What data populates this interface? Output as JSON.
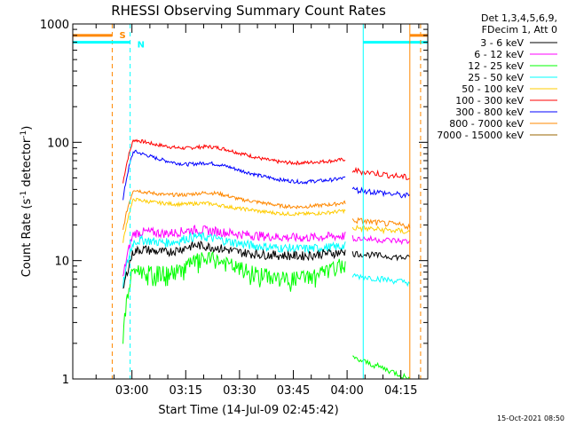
{
  "chart_data": {
    "type": "line",
    "title": "RHESSI Observing Summary Count Rates",
    "xlabel": "Start Time (14-Jul-09 02:45:42)",
    "ylabel_main": "Count Rate (s",
    "ylabel_sup1": "-1",
    "ylabel_mid": " detector",
    "ylabel_sup2": "-1",
    "ylabel_end": ")",
    "y_scale": "log",
    "ylim": [
      1,
      1000
    ],
    "xlim_minutes_after_0245": [
      -1.5,
      97.5
    ],
    "y_ticks": [
      {
        "value": 1,
        "label": "1"
      },
      {
        "value": 10,
        "label": "10"
      },
      {
        "value": 100,
        "label": "100"
      },
      {
        "value": 1000,
        "label": "1000"
      }
    ],
    "x_ticks": [
      {
        "value": 15,
        "label": "03:00"
      },
      {
        "value": 30,
        "label": "03:15"
      },
      {
        "value": 45,
        "label": "03:30"
      },
      {
        "value": 60,
        "label": "03:45"
      },
      {
        "value": 75,
        "label": "04:00"
      },
      {
        "value": 90,
        "label": "04:15"
      }
    ],
    "legend_header": [
      "Det 1,3,4,5,6,9,",
      "FDecim 1, Att 0"
    ],
    "legend_position": "top-right, outside plot",
    "series": [
      {
        "name": "3 - 6 keV",
        "color": "#000000",
        "values": [
          5.5,
          12,
          12.5,
          12,
          11.8,
          12.2,
          13,
          13.5,
          13.2,
          12.8,
          12.3,
          11.8,
          11.5,
          11.3,
          11.2,
          11.1,
          11,
          11,
          11.2,
          11.5,
          11.6,
          11.8
        ]
      },
      {
        "name": "6 - 12 keV",
        "color": "#ff00ff",
        "values": [
          7,
          17,
          17.5,
          17.3,
          17,
          17.3,
          18,
          18.3,
          18,
          17.6,
          17.2,
          16.8,
          16.5,
          16.2,
          16,
          15.8,
          15.7,
          15.6,
          15.8,
          15.9,
          16.1,
          16.2
        ]
      },
      {
        "name": "12 - 25 keV",
        "color": "#00ff00",
        "values": [
          2.2,
          8.5,
          8,
          7.8,
          7.8,
          8,
          9,
          10,
          10.3,
          10,
          9.2,
          8.5,
          8,
          7.6,
          7.3,
          7,
          7,
          7.2,
          7.5,
          8,
          8.5,
          9.5
        ]
      },
      {
        "name": "25 - 50 keV",
        "color": "#00ffff",
        "values": [
          6,
          14.5,
          15,
          14.5,
          14.2,
          14.5,
          15.5,
          16,
          15.7,
          15.2,
          14.5,
          14,
          13.5,
          13.2,
          13,
          12.8,
          12.7,
          12.6,
          12.7,
          12.9,
          13,
          13.3
        ]
      },
      {
        "name": "50 - 100 keV",
        "color": "#ffcc00",
        "values": [
          14,
          33,
          32,
          31,
          30.5,
          30,
          30,
          30.5,
          30.5,
          29.5,
          28.5,
          27.5,
          27,
          26,
          25.5,
          25,
          24.8,
          24.8,
          25,
          25.3,
          25.8,
          26.5
        ]
      },
      {
        "name": "100 - 300 keV",
        "color": "#ff0000",
        "values": [
          45,
          105,
          101,
          96,
          93,
          90,
          89,
          91,
          92,
          90,
          86,
          81,
          77,
          73,
          70,
          68,
          67,
          67,
          68,
          69,
          70,
          72
        ]
      },
      {
        "name": "300 - 800 keV",
        "color": "#0000ff",
        "values": [
          32,
          84,
          79,
          74,
          70,
          67,
          65,
          66,
          67,
          65,
          62,
          58,
          55,
          52,
          50,
          48,
          47,
          46,
          47,
          47.5,
          48.5,
          50
        ]
      },
      {
        "name": "800 - 7000 keV",
        "color": "#ff8800",
        "values": [
          18,
          40,
          38,
          37,
          36,
          36,
          36,
          37,
          37.5,
          37,
          35,
          33,
          32,
          31,
          30,
          29,
          28.5,
          28.5,
          29,
          29.5,
          30,
          31
        ]
      },
      {
        "name": "7000 - 15000 keV",
        "color": "#996600",
        "values": []
      }
    ],
    "series_x_start_min": 12.5,
    "series_x_end_min": 74.5,
    "post_gap_series": {
      "start_min": 76.5,
      "end_min": 92.5,
      "black": [
        11.5,
        10.5
      ],
      "cyan": [
        7.5,
        6.5
      ],
      "green": [
        1.5,
        1.0
      ],
      "magenta": [
        15.5,
        14.5
      ],
      "yellow": [
        19,
        17.5
      ],
      "orange": [
        22,
        19.5
      ],
      "blue": [
        40,
        35
      ],
      "red": [
        58,
        50
      ]
    },
    "markers": [
      {
        "label": "S",
        "color": "#ff8800",
        "line_min": 9.5,
        "level_value": 800,
        "solid_from_min": -1.5,
        "solid_to_min": 9.5,
        "resume_min": 92.5,
        "dashed": true
      },
      {
        "label": "N",
        "color": "#00ffff",
        "line_min": 14.5,
        "level_value": 700,
        "solid_from_min": -1.5,
        "solid_to_min": 14.5,
        "resume_min": 79.5,
        "dashed": true
      }
    ],
    "vertical_lines": [
      {
        "min": 79.5,
        "color": "#00ffff",
        "style": "solid"
      },
      {
        "min": 92.5,
        "color": "#ff8800",
        "style": "solid"
      },
      {
        "min": 95.5,
        "color": "#ff8800",
        "style": "dashed"
      },
      {
        "min": -1.5,
        "color": "#00ffff",
        "style": "solid"
      }
    ],
    "timestamp": "15-Oct-2021 08:50"
  }
}
